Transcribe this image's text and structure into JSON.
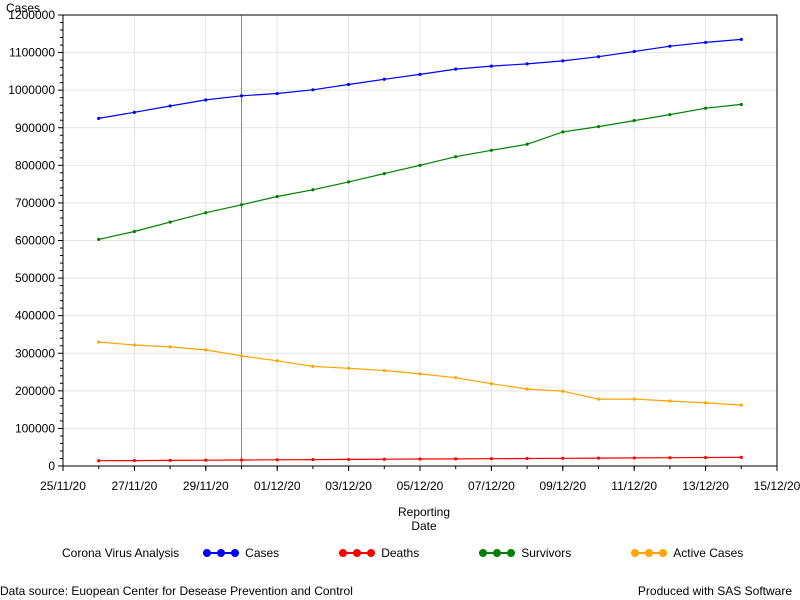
{
  "chart_data": {
    "type": "line",
    "ylabel": "Cases",
    "xlabel_line1": "Reporting",
    "xlabel_line2": "Date",
    "x": [
      "2020-11-26",
      "2020-11-27",
      "2020-11-28",
      "2020-11-29",
      "2020-11-30",
      "2020-12-01",
      "2020-12-02",
      "2020-12-03",
      "2020-12-04",
      "2020-12-05",
      "2020-12-06",
      "2020-12-07",
      "2020-12-08",
      "2020-12-09",
      "2020-12-10",
      "2020-12-11",
      "2020-12-12",
      "2020-12-13",
      "2020-12-14"
    ],
    "xlim": [
      "2020-11-25",
      "2020-12-15"
    ],
    "x_ticks": [
      "2020-11-25",
      "2020-11-27",
      "2020-11-29",
      "2020-12-01",
      "2020-12-03",
      "2020-12-05",
      "2020-12-07",
      "2020-12-09",
      "2020-12-11",
      "2020-12-13",
      "2020-12-15"
    ],
    "x_tick_labels": [
      "25/11/20",
      "27/11/20",
      "29/11/20",
      "01/12/20",
      "03/12/20",
      "05/12/20",
      "07/12/20",
      "09/12/20",
      "11/12/20",
      "13/12/20",
      "15/12/20"
    ],
    "ylim": [
      0,
      1200000
    ],
    "y_ticks": [
      0,
      100000,
      200000,
      300000,
      400000,
      500000,
      600000,
      700000,
      800000,
      900000,
      1000000,
      1100000,
      1200000
    ],
    "y_tick_labels": [
      "0",
      "100000",
      "200000",
      "300000",
      "400000",
      "500000",
      "600000",
      "700000",
      "800000",
      "900000",
      "1000000",
      "1100000",
      "1200000"
    ],
    "grid": true,
    "reference_line_x": "2020-11-30",
    "legend_title": "Corona Virus Analysis",
    "legend_position": "bottom",
    "series": [
      {
        "name": "Cases",
        "color": "#0000ff",
        "values": [
          925000,
          941000,
          958000,
          974000,
          985000,
          991000,
          1001000,
          1015000,
          1029000,
          1042000,
          1056000,
          1064000,
          1070000,
          1078000,
          1089000,
          1103000,
          1117000,
          1127000,
          1135000
        ]
      },
      {
        "name": "Deaths",
        "color": "#ff0000",
        "values": [
          14000,
          14500,
          15000,
          15500,
          16000,
          16500,
          17000,
          17500,
          18000,
          18500,
          19000,
          19500,
          20000,
          20500,
          21000,
          21500,
          22000,
          22500,
          23000
        ]
      },
      {
        "name": "Survivors",
        "color": "#008000",
        "values": [
          603000,
          624000,
          649000,
          674000,
          695000,
          717000,
          735000,
          756000,
          778000,
          800000,
          823000,
          840000,
          856000,
          889000,
          903000,
          919000,
          935000,
          952000,
          962000
        ]
      },
      {
        "name": "Active Cases",
        "color": "#ffa500",
        "values": [
          330000,
          322000,
          317000,
          309000,
          293000,
          280000,
          265000,
          260000,
          254000,
          245000,
          235000,
          219000,
          205000,
          199000,
          178000,
          178000,
          173000,
          168000,
          162000
        ]
      }
    ]
  },
  "footer": {
    "source": "Data source: Euopean Center for Desease Prevention and Control",
    "produced": "Produced with SAS Software"
  }
}
